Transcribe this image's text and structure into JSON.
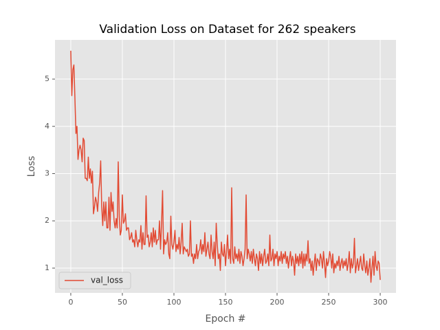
{
  "chart_data": {
    "type": "line",
    "title": "Validation Loss on  Dataset for 262 speakers",
    "x_label": "Epoch #",
    "y_label": "Loss",
    "x": [
      0,
      1,
      2,
      3,
      4,
      5,
      6,
      7,
      8,
      9,
      10,
      11,
      12,
      13,
      14,
      15,
      16,
      17,
      18,
      19,
      20,
      21,
      22,
      23,
      24,
      25,
      26,
      27,
      28,
      29,
      30,
      31,
      32,
      33,
      34,
      35,
      36,
      37,
      38,
      39,
      40,
      41,
      42,
      43,
      44,
      45,
      46,
      47,
      48,
      49,
      50,
      51,
      52,
      53,
      54,
      55,
      56,
      57,
      58,
      59,
      60,
      61,
      62,
      63,
      64,
      65,
      66,
      67,
      68,
      69,
      70,
      71,
      72,
      73,
      74,
      75,
      76,
      77,
      78,
      79,
      80,
      81,
      82,
      83,
      84,
      85,
      86,
      87,
      88,
      89,
      90,
      91,
      92,
      93,
      94,
      95,
      96,
      97,
      98,
      99,
      100,
      101,
      102,
      103,
      104,
      105,
      106,
      107,
      108,
      109,
      110,
      111,
      112,
      113,
      114,
      115,
      116,
      117,
      118,
      119,
      120,
      121,
      122,
      123,
      124,
      125,
      126,
      127,
      128,
      129,
      130,
      131,
      132,
      133,
      134,
      135,
      136,
      137,
      138,
      139,
      140,
      141,
      142,
      143,
      144,
      145,
      146,
      147,
      148,
      149,
      150,
      151,
      152,
      153,
      154,
      155,
      156,
      157,
      158,
      159,
      160,
      161,
      162,
      163,
      164,
      165,
      166,
      167,
      168,
      169,
      170,
      171,
      172,
      173,
      174,
      175,
      176,
      177,
      178,
      179,
      180,
      181,
      182,
      183,
      184,
      185,
      186,
      187,
      188,
      189,
      190,
      191,
      192,
      193,
      194,
      195,
      196,
      197,
      198,
      199,
      200,
      201,
      202,
      203,
      204,
      205,
      206,
      207,
      208,
      209,
      210,
      211,
      212,
      213,
      214,
      215,
      216,
      217,
      218,
      219,
      220,
      221,
      222,
      223,
      224,
      225,
      226,
      227,
      228,
      229,
      230,
      231,
      232,
      233,
      234,
      235,
      236,
      237,
      238,
      239,
      240,
      241,
      242,
      243,
      244,
      245,
      246,
      247,
      248,
      249,
      250,
      251,
      252,
      253,
      254,
      255,
      256,
      257,
      258,
      259,
      260,
      261,
      262,
      263,
      264,
      265,
      266,
      267,
      268,
      269,
      270,
      271,
      272,
      273,
      274,
      275,
      276,
      277,
      278,
      279,
      280,
      281,
      282,
      283,
      284,
      285,
      286,
      287,
      288,
      289,
      290,
      291,
      292,
      293,
      294,
      295,
      296,
      297,
      298,
      299,
      300
    ],
    "series": [
      {
        "name": "val_loss",
        "color": "#e24a33",
        "values": [
          5.6,
          4.65,
          5.2,
          5.3,
          4.6,
          3.85,
          4.0,
          3.3,
          3.5,
          3.6,
          3.5,
          3.25,
          3.75,
          3.7,
          2.9,
          2.9,
          2.85,
          3.35,
          2.9,
          3.1,
          2.8,
          3.05,
          2.15,
          2.3,
          2.5,
          2.4,
          2.2,
          2.6,
          2.8,
          3.27,
          2.3,
          1.9,
          2.4,
          2.0,
          2.4,
          1.85,
          1.85,
          2.5,
          1.8,
          2.6,
          2.2,
          2.4,
          2.0,
          1.85,
          2.05,
          1.85,
          3.25,
          2.1,
          1.7,
          1.8,
          2.55,
          1.95,
          2.0,
          2.15,
          1.8,
          1.85,
          1.85,
          1.6,
          1.65,
          1.75,
          1.55,
          1.6,
          1.45,
          1.8,
          1.6,
          1.45,
          1.6,
          1.55,
          1.9,
          1.4,
          1.75,
          1.5,
          1.5,
          2.53,
          1.65,
          1.7,
          1.45,
          1.55,
          1.75,
          1.45,
          1.85,
          1.55,
          1.8,
          1.5,
          1.6,
          1.6,
          2.0,
          1.4,
          1.95,
          2.64,
          1.3,
          1.6,
          1.5,
          1.55,
          1.75,
          1.3,
          1.2,
          2.1,
          1.5,
          1.4,
          1.55,
          1.8,
          1.35,
          1.5,
          1.4,
          1.65,
          1.3,
          1.55,
          1.95,
          1.3,
          1.45,
          1.4,
          1.35,
          1.4,
          1.25,
          1.3,
          2.0,
          1.25,
          1.3,
          1.1,
          1.3,
          1.2,
          1.5,
          1.2,
          1.35,
          1.4,
          1.6,
          1.3,
          1.5,
          1.35,
          1.75,
          1.25,
          1.4,
          1.55,
          1.3,
          1.2,
          1.7,
          1.35,
          1.2,
          1.55,
          1.05,
          1.95,
          1.5,
          1.2,
          1.3,
          0.95,
          1.55,
          1.3,
          1.25,
          1.5,
          1.05,
          1.35,
          1.7,
          1.2,
          1.4,
          1.1,
          2.7,
          1.2,
          1.1,
          1.45,
          1.2,
          1.3,
          1.15,
          1.4,
          1.1,
          1.35,
          1.25,
          1.05,
          1.2,
          1.4,
          2.55,
          1.2,
          1.4,
          1.3,
          1.15,
          1.35,
          1.1,
          1.4,
          1.2,
          1.05,
          1.3,
          1.2,
          0.95,
          1.35,
          1.1,
          1.3,
          1.05,
          1.25,
          1.4,
          1.1,
          1.15,
          1.3,
          1.05,
          1.7,
          1.15,
          1.2,
          1.4,
          1.05,
          1.3,
          1.2,
          1.35,
          1.05,
          1.25,
          1.15,
          1.35,
          1.1,
          1.3,
          1.2,
          1.35,
          1.1,
          1.25,
          1.0,
          1.2,
          1.35,
          1.05,
          1.25,
          1.15,
          0.85,
          1.3,
          1.1,
          1.25,
          1.05,
          1.3,
          1.1,
          1.35,
          1.0,
          1.3,
          1.05,
          1.3,
          1.15,
          1.58,
          1.1,
          1.2,
          0.95,
          1.15,
          0.85,
          1.1,
          1.3,
          0.95,
          1.2,
          1.15,
          1.05,
          1.3,
          1.2,
          1.0,
          1.35,
          1.1,
          0.8,
          1.2,
          1.05,
          1.15,
          1.35,
          1.25,
          1.0,
          1.3,
          0.9,
          1.1,
          1.0,
          1.15,
          1.05,
          1.25,
          0.95,
          1.1,
          1.2,
          1.0,
          1.15,
          1.05,
          1.2,
          0.95,
          1.1,
          1.35,
          0.9,
          1.2,
          1.0,
          1.1,
          1.63,
          0.9,
          1.05,
          1.2,
          0.95,
          1.1,
          1.25,
          1.0,
          0.95,
          1.3,
          1.05,
          0.9,
          1.15,
          0.85,
          1.0,
          1.2,
          0.7,
          1.0,
          1.25,
          0.85,
          1.35,
          1.05,
          0.95,
          1.15,
          1.1,
          0.75
        ]
      }
    ],
    "xlim": [
      -15.3,
      315.3
    ],
    "ylim": [
      0.476,
      5.83
    ],
    "xticks": [
      0,
      50,
      100,
      150,
      200,
      250,
      300
    ],
    "yticks": [
      1,
      2,
      3,
      4,
      5
    ],
    "grid": true,
    "legend": "lower left"
  }
}
